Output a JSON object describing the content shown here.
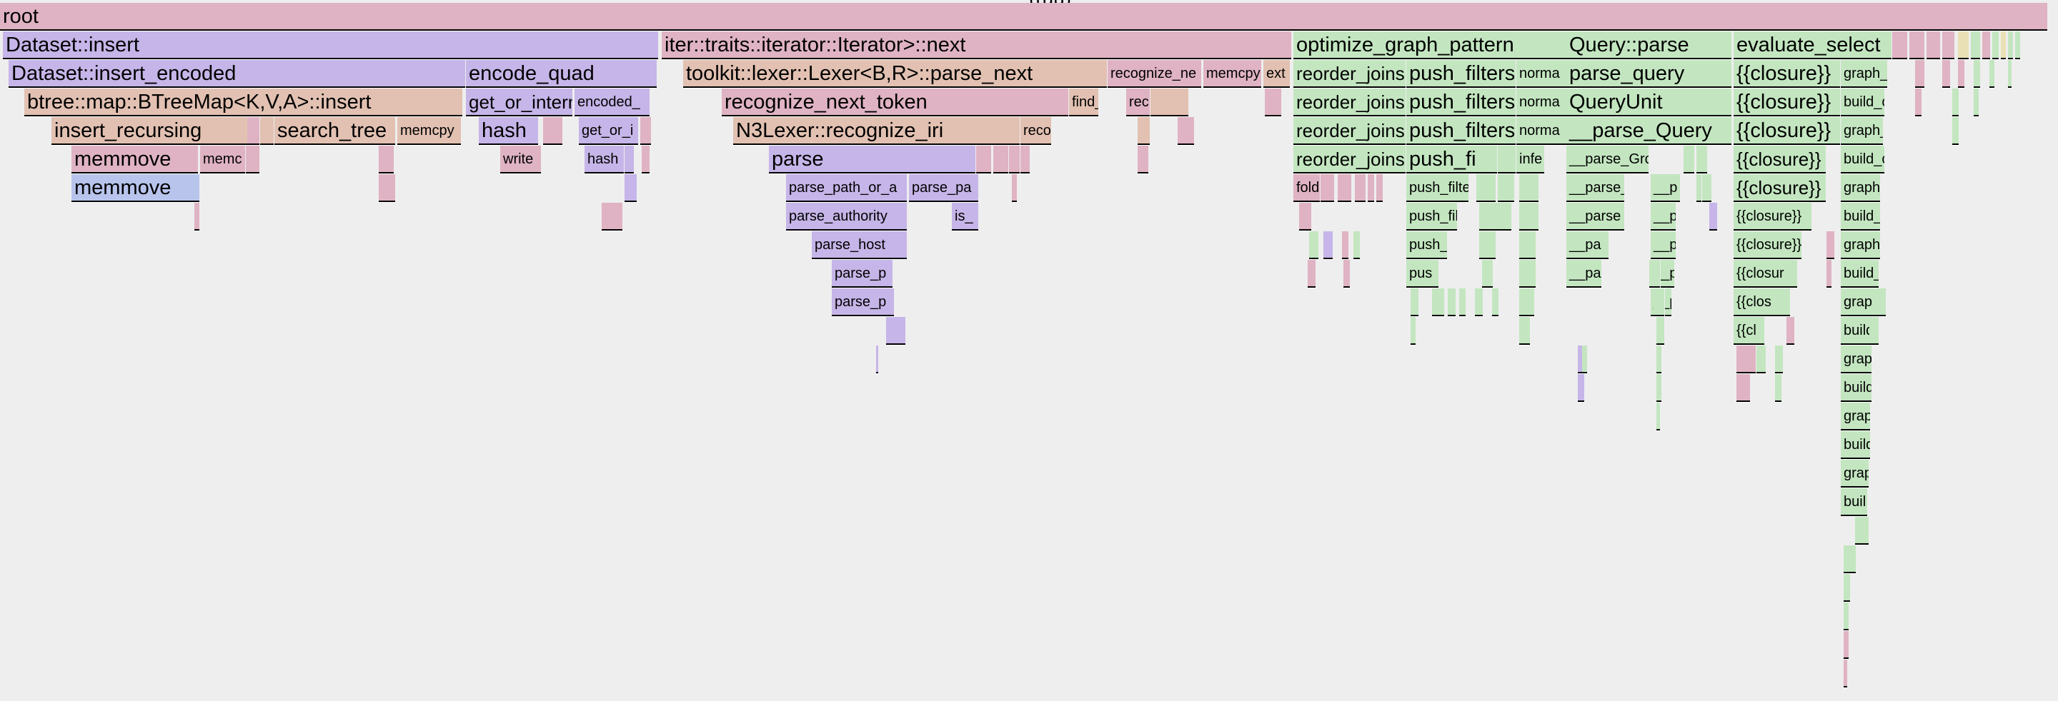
{
  "colors": {
    "pink": "#dfb3c3",
    "purple": "#c6b5e8",
    "tan": "#e2c1b2",
    "blue": "#b8c4ec",
    "green": "#c3e6c0",
    "lightgreen": "#d2ecc8",
    "yellow": "#e9e0b5"
  },
  "header_fragment": "(ruu)",
  "frames": [
    {
      "label": "root",
      "color": "pink",
      "size": "big"
    },
    {
      "label": "Dataset::insert",
      "color": "purple",
      "size": "big"
    },
    {
      "label": "iter::traits::iterator::Iterator>::next",
      "color": "pink",
      "size": "big"
    },
    {
      "label": "optimize_graph_pattern",
      "color": "green",
      "size": "big"
    },
    {
      "label": "Query::parse",
      "color": "green",
      "size": "big"
    },
    {
      "label": "evaluate_select",
      "color": "green",
      "size": "big"
    },
    {
      "label": "Dataset::insert_encoded",
      "color": "purple",
      "size": "big"
    },
    {
      "label": "encode_quad",
      "color": "purple",
      "size": "big"
    },
    {
      "label": "toolkit::lexer::Lexer<B,R>::parse_next",
      "color": "tan",
      "size": "big"
    },
    {
      "label": "recognize_ne",
      "color": "pink",
      "size": "small"
    },
    {
      "label": "memcpy",
      "color": "pink",
      "size": "small"
    },
    {
      "label": "ext",
      "color": "tan",
      "size": "small"
    },
    {
      "label": "reorder_joins",
      "color": "green",
      "size": "mid"
    },
    {
      "label": "push_filters",
      "color": "green",
      "size": "big"
    },
    {
      "label": "norma",
      "color": "green",
      "size": "small"
    },
    {
      "label": "parse_query",
      "color": "green",
      "size": "big"
    },
    {
      "label": "{{closure}}",
      "color": "green",
      "size": "big"
    },
    {
      "label": "graph_",
      "color": "green",
      "size": "small"
    },
    {
      "label": "btree::map::BTreeMap<K,V,A>::insert",
      "color": "tan",
      "size": "big"
    },
    {
      "label": "get_or_intern",
      "color": "purple",
      "size": "mid"
    },
    {
      "label": "encoded_",
      "color": "purple",
      "size": "small"
    },
    {
      "label": "recognize_next_token",
      "color": "pink",
      "size": "big"
    },
    {
      "label": "find_",
      "color": "tan",
      "size": "small"
    },
    {
      "label": "rec",
      "color": "pink",
      "size": "small"
    },
    {
      "label": "reorder_joins",
      "color": "green",
      "size": "mid"
    },
    {
      "label": "push_filters",
      "color": "green",
      "size": "big"
    },
    {
      "label": "norma",
      "color": "green",
      "size": "small"
    },
    {
      "label": "QueryUnit",
      "color": "green",
      "size": "big"
    },
    {
      "label": "{{closure}}",
      "color": "green",
      "size": "big"
    },
    {
      "label": "build_c",
      "color": "green",
      "size": "small"
    },
    {
      "label": "insert_recursing",
      "color": "tan",
      "size": "big"
    },
    {
      "label": "search_tree",
      "color": "tan",
      "size": "big"
    },
    {
      "label": "memcpy",
      "color": "tan",
      "size": "small"
    },
    {
      "label": "hash",
      "color": "purple",
      "size": "big"
    },
    {
      "label": "get_or_i",
      "color": "purple",
      "size": "small"
    },
    {
      "label": "N3Lexer::recognize_iri",
      "color": "tan",
      "size": "big"
    },
    {
      "label": "reco",
      "color": "tan",
      "size": "small"
    },
    {
      "label": "reorder_joins",
      "color": "green",
      "size": "mid"
    },
    {
      "label": "push_filters",
      "color": "green",
      "size": "big"
    },
    {
      "label": "norma",
      "color": "green",
      "size": "small"
    },
    {
      "label": "__parse_Query",
      "color": "green",
      "size": "big"
    },
    {
      "label": "{{closure}}",
      "color": "green",
      "size": "big"
    },
    {
      "label": "graph_",
      "color": "green",
      "size": "small"
    },
    {
      "label": "memmove",
      "color": "pink",
      "size": "big"
    },
    {
      "label": "memc",
      "color": "pink",
      "size": "small"
    },
    {
      "label": "write",
      "color": "pink",
      "size": "small"
    },
    {
      "label": "hash",
      "color": "purple",
      "size": "small"
    },
    {
      "label": "parse",
      "color": "purple",
      "size": "big"
    },
    {
      "label": "reorder_joins",
      "color": "green",
      "size": "mid"
    },
    {
      "label": "push_filters",
      "color": "green",
      "size": "big"
    },
    {
      "label": "infe",
      "color": "green",
      "size": "small"
    },
    {
      "label": "__parse_GroupGr",
      "color": "green",
      "size": "small"
    },
    {
      "label": "{{closure}}",
      "color": "green",
      "size": "mid"
    },
    {
      "label": "build_c",
      "color": "green",
      "size": "small"
    },
    {
      "label": "memmove",
      "color": "blue",
      "size": "big"
    },
    {
      "label": "parse_path_or_a",
      "color": "purple",
      "size": "small"
    },
    {
      "label": "parse_pa",
      "color": "purple",
      "size": "small"
    },
    {
      "label": "fold",
      "color": "pink",
      "size": "small"
    },
    {
      "label": "push_filters",
      "color": "green",
      "size": "small"
    },
    {
      "label": "__parse_Tr",
      "color": "green",
      "size": "small"
    },
    {
      "label": "__p",
      "color": "green",
      "size": "small"
    },
    {
      "label": "{{closure}}",
      "color": "green",
      "size": "mid"
    },
    {
      "label": "graph_",
      "color": "green",
      "size": "small"
    },
    {
      "label": "parse_authority",
      "color": "purple",
      "size": "small"
    },
    {
      "label": "is_",
      "color": "purple",
      "size": "small"
    },
    {
      "label": "push_filt",
      "color": "green",
      "size": "small"
    },
    {
      "label": "__parse",
      "color": "green",
      "size": "small"
    },
    {
      "label": "__p",
      "color": "green",
      "size": "small"
    },
    {
      "label": "{{closure}}",
      "color": "green",
      "size": "small"
    },
    {
      "label": "build_",
      "color": "green",
      "size": "small"
    },
    {
      "label": "parse_host",
      "color": "purple",
      "size": "small"
    },
    {
      "label": "push_",
      "color": "green",
      "size": "small"
    },
    {
      "label": "__pa",
      "color": "green",
      "size": "small"
    },
    {
      "label": "__p",
      "color": "green",
      "size": "small"
    },
    {
      "label": "{{closure}}",
      "color": "green",
      "size": "small"
    },
    {
      "label": "graph_",
      "color": "green",
      "size": "small"
    },
    {
      "label": "parse_p",
      "color": "purple",
      "size": "small"
    },
    {
      "label": "pus",
      "color": "green",
      "size": "small"
    },
    {
      "label": "__pa",
      "color": "green",
      "size": "small"
    },
    {
      "label": "__p",
      "color": "green",
      "size": "small"
    },
    {
      "label": "{{closur",
      "color": "green",
      "size": "small"
    },
    {
      "label": "build_",
      "color": "green",
      "size": "small"
    },
    {
      "label": "parse_p",
      "color": "purple",
      "size": "small"
    },
    {
      "label": "__p",
      "color": "green",
      "size": "small"
    },
    {
      "label": "{{clos",
      "color": "green",
      "size": "small"
    },
    {
      "label": "graph",
      "color": "green",
      "size": "small"
    },
    {
      "label": "{{cl",
      "color": "green",
      "size": "small"
    },
    {
      "label": "build",
      "color": "green",
      "size": "small"
    },
    {
      "label": "graph",
      "color": "green",
      "size": "small"
    },
    {
      "label": "build",
      "color": "green",
      "size": "small"
    },
    {
      "label": "grap",
      "color": "green",
      "size": "small"
    },
    {
      "label": "build",
      "color": "green",
      "size": "small"
    },
    {
      "label": "grap",
      "color": "green",
      "size": "small"
    },
    {
      "label": "buil",
      "color": "green",
      "size": "small"
    },
    {
      "label": "gra",
      "color": "green",
      "size": "small"
    }
  ]
}
